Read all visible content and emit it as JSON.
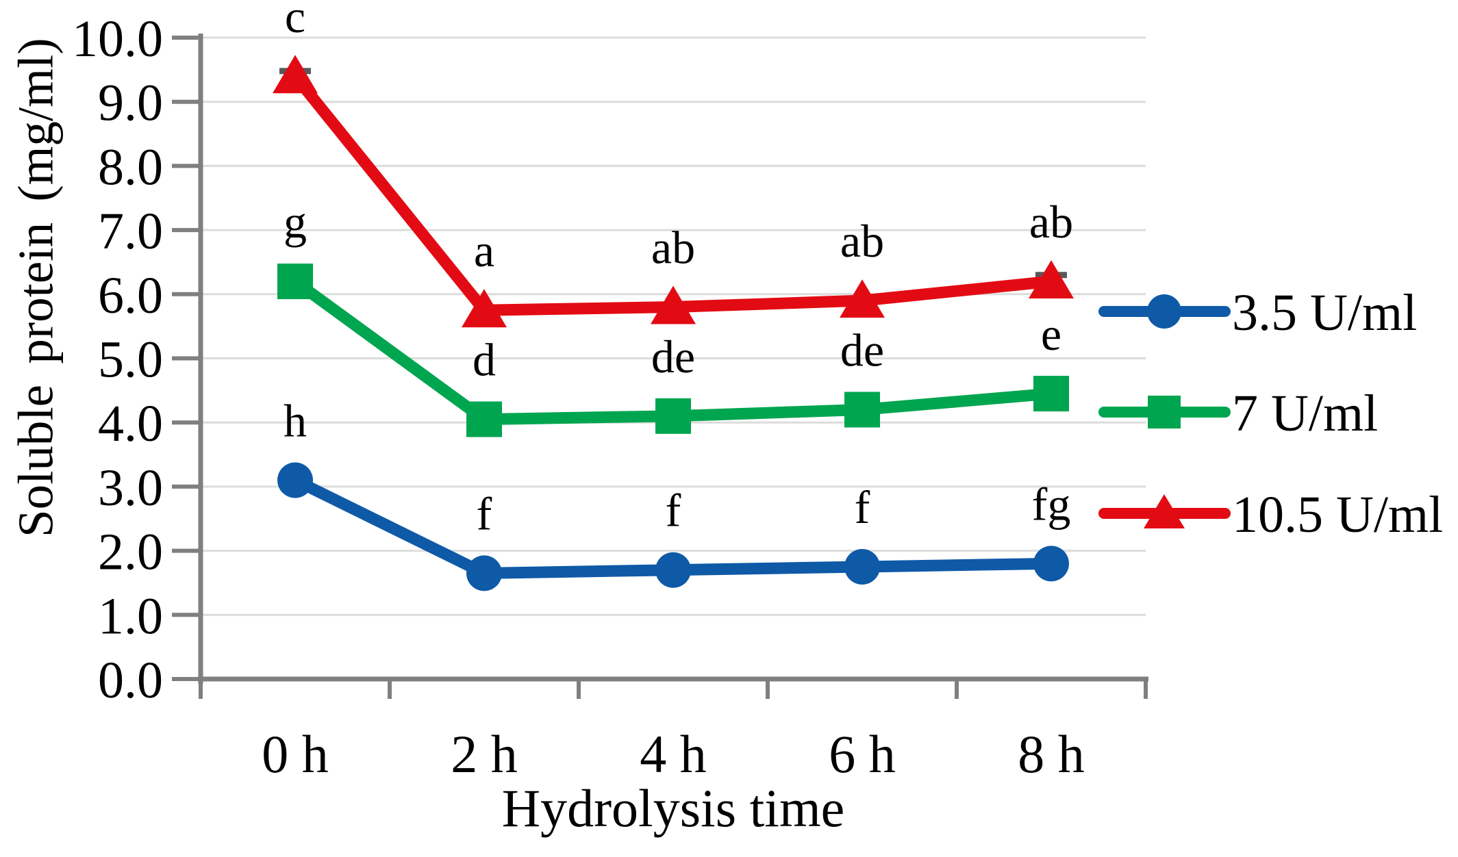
{
  "chart_data": {
    "type": "line",
    "title": "",
    "xlabel": "Hydrolysis time",
    "ylabel": "Soluble protein (mg/ml)",
    "categories": [
      "0 h",
      "2 h",
      "4 h",
      "6 h",
      "8 h"
    ],
    "y_tick_labels": [
      "0.0",
      "1.0",
      "2.0",
      "3.0",
      "4.0",
      "5.0",
      "6.0",
      "7.0",
      "8.0",
      "9.0",
      "10.0"
    ],
    "ylim": [
      0,
      10
    ],
    "grid": true,
    "legend_position": "right",
    "series": [
      {
        "name": "3.5 U/ml",
        "marker": "circle",
        "color": "#0E5AA7",
        "values": [
          3.1,
          1.65,
          1.7,
          1.75,
          1.8
        ],
        "point_labels": [
          "h",
          "f",
          "f",
          "f",
          "fg"
        ],
        "error_caps": [
          null,
          null,
          null,
          null,
          null
        ]
      },
      {
        "name": "7 U/ml",
        "marker": "square",
        "color": "#00A54F",
        "values": [
          6.2,
          4.05,
          4.1,
          4.2,
          4.45
        ],
        "point_labels": [
          "g",
          "d",
          "de",
          "de",
          "e"
        ],
        "error_caps": [
          null,
          null,
          null,
          null,
          null
        ]
      },
      {
        "name": "10.5 U/ml",
        "marker": "triangle",
        "color": "#E30B13",
        "values": [
          9.4,
          5.75,
          5.8,
          5.9,
          6.2
        ],
        "point_labels": [
          "c",
          "a",
          "ab",
          "ab",
          "ab"
        ],
        "error_caps": [
          9.48,
          null,
          null,
          null,
          6.3
        ]
      }
    ],
    "colors": {
      "axis": "#7F7F7F",
      "gridline": "#DCDCDC",
      "error_cap": "#595959",
      "text": "#000000",
      "background": "#FFFFFF"
    }
  }
}
